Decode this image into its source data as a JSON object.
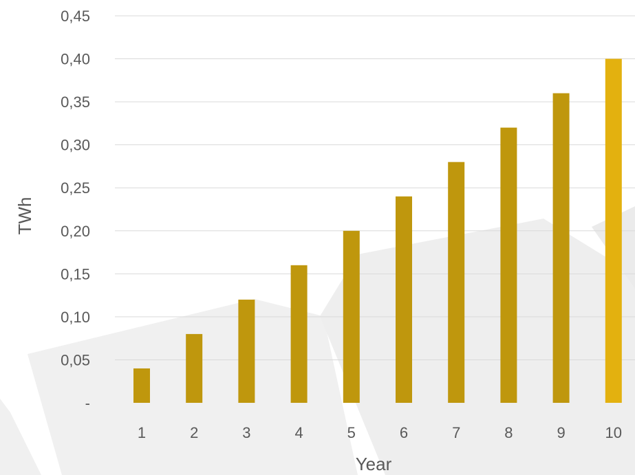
{
  "chart_data": {
    "type": "bar",
    "title": "",
    "xlabel": "Year",
    "ylabel": "TWh",
    "categories": [
      "1",
      "2",
      "3",
      "4",
      "5",
      "6",
      "7",
      "8",
      "9",
      "10"
    ],
    "values": [
      0.04,
      0.08,
      0.12,
      0.16,
      0.2,
      0.24,
      0.28,
      0.32,
      0.36,
      0.4
    ],
    "ylim": [
      0,
      0.45
    ],
    "yticks": [
      0,
      0.05,
      0.1,
      0.15,
      0.2,
      0.25,
      0.3,
      0.35,
      0.4,
      0.45
    ],
    "ytick_labels": [
      "-",
      "0,05",
      "0,10",
      "0,15",
      "0,20",
      "0,25",
      "0,30",
      "0,35",
      "0,40",
      "0,45"
    ],
    "grid": true,
    "legend": "none",
    "colors": {
      "bar": "#BF970D",
      "bar_highlight": "#E3B10F",
      "grid": "#D9D9D9",
      "text": "#595959",
      "background_shape": "#F0F0F0"
    },
    "highlight_index": 9
  }
}
